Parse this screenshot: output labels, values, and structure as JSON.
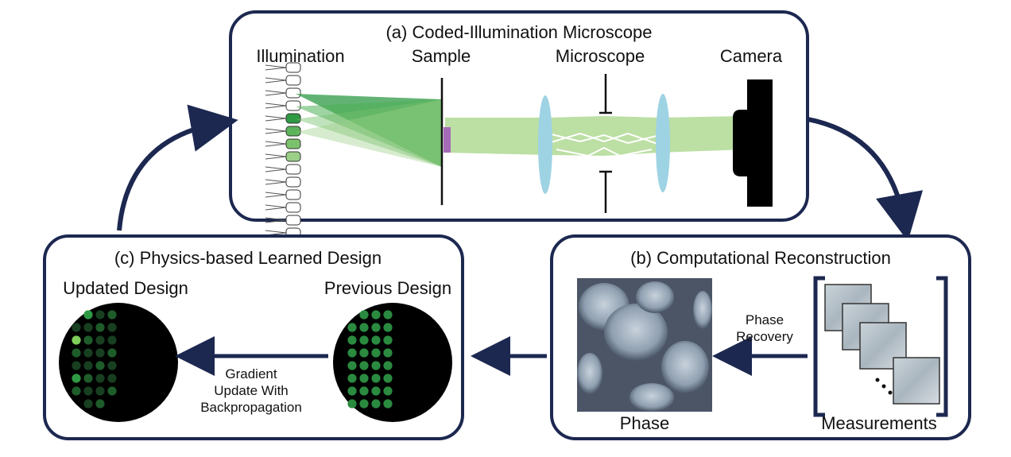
{
  "panel_a": {
    "title": "(a) Coded-Illumination Microscope",
    "illumination_label": "Illumination",
    "sample_label": "Sample",
    "microscope_label": "Microscope",
    "camera_label": "Camera"
  },
  "panel_b": {
    "title": "(b) Computational Reconstruction",
    "phase_label": "Phase",
    "arrow_label_line1": "Phase",
    "arrow_label_line2": "Recovery",
    "measurements_label": "Measurements"
  },
  "panel_c": {
    "title": "(c) Physics-based Learned Design",
    "updated_label": "Updated Design",
    "previous_label": "Previous Design",
    "arrow_label_line1": "Gradient",
    "arrow_label_line2": "Update With",
    "arrow_label_line3": "Backpropagation"
  },
  "colors": {
    "frame": "#1c2850",
    "led_green": "#2e9a44",
    "beam_green": "#b5dc9a",
    "lens_blue": "#9ed3e4",
    "sample_purple": "#a56bb8"
  }
}
